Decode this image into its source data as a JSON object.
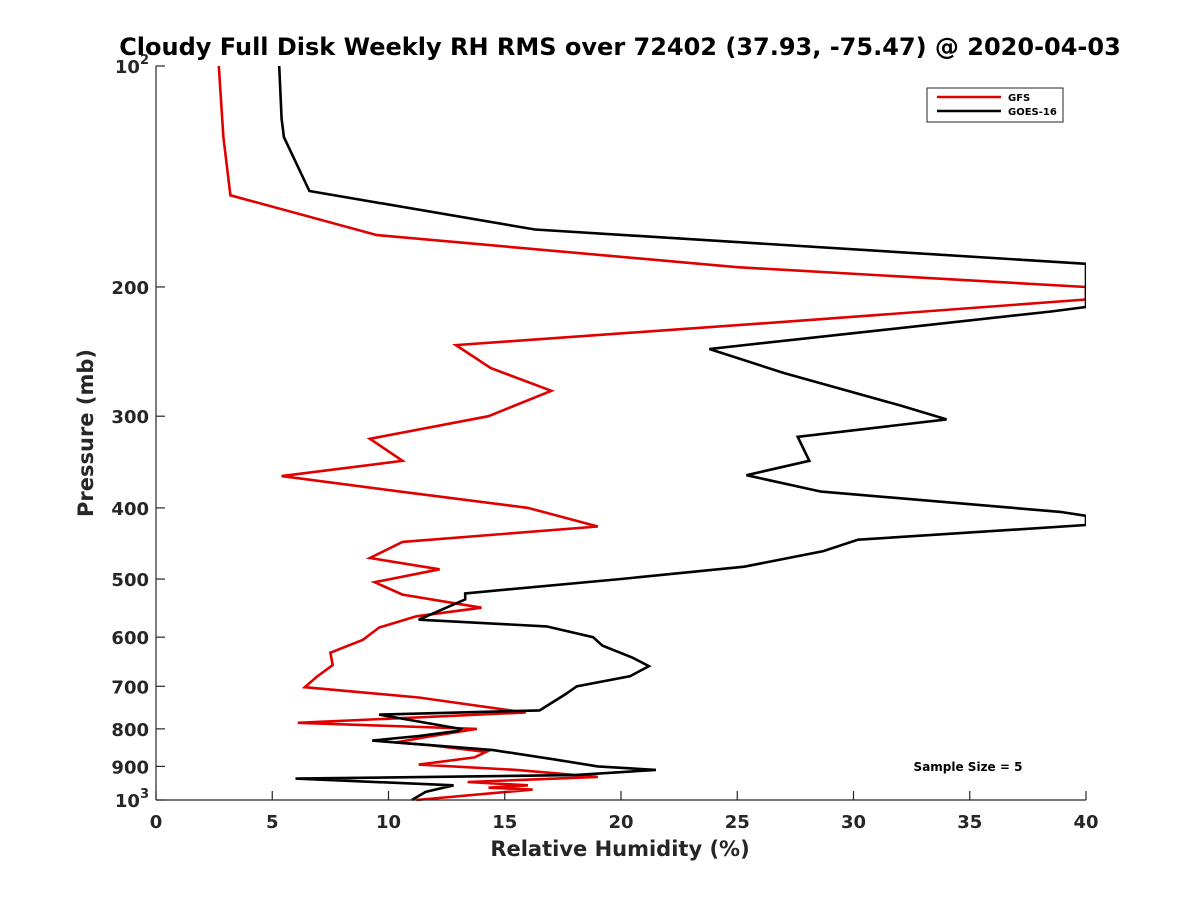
{
  "chart_data": {
    "type": "line",
    "title": "Cloudy Full Disk Weekly RH RMS over 72402 (37.93, -75.47) @ 2020-04-03",
    "xlabel": "Relative Humidity (%)",
    "ylabel": "Pressure (mb)",
    "xlim": [
      0,
      40
    ],
    "ylim": [
      100,
      1000
    ],
    "y_scale": "log",
    "y_reversed": true,
    "x_ticks": [
      "0",
      "5",
      "10",
      "15",
      "20",
      "25",
      "30",
      "35",
      "40"
    ],
    "y_ticks": [
      {
        "value": 100,
        "base": "10",
        "exp": "2"
      },
      {
        "value": 200,
        "label": "200"
      },
      {
        "value": 300,
        "label": "300"
      },
      {
        "value": 400,
        "label": "400"
      },
      {
        "value": 500,
        "label": "500"
      },
      {
        "value": 600,
        "label": "600"
      },
      {
        "value": 700,
        "label": "700"
      },
      {
        "value": 800,
        "label": "800"
      },
      {
        "value": 900,
        "label": "900"
      },
      {
        "value": 1000,
        "base": "10",
        "exp": "3"
      }
    ],
    "legend_position": "top-right",
    "annotation": "Sample Size = 5",
    "series": [
      {
        "name": "GFS",
        "color": "#e00000",
        "points": [
          [
            2.7,
            100
          ],
          [
            2.9,
            125
          ],
          [
            3.2,
            150
          ],
          [
            9.5,
            170
          ],
          [
            25,
            188
          ],
          [
            40,
            200
          ],
          [
            40,
            208
          ],
          [
            28,
            222
          ],
          [
            12.9,
            240
          ],
          [
            14.4,
            258
          ],
          [
            17,
            277
          ],
          [
            14.3,
            300
          ],
          [
            9.2,
            322
          ],
          [
            10.6,
            345
          ],
          [
            5.4,
            362
          ],
          [
            10.5,
            380
          ],
          [
            16,
            400
          ],
          [
            19,
            424
          ],
          [
            10.6,
            445
          ],
          [
            9.2,
            468
          ],
          [
            12.2,
            485
          ],
          [
            9.4,
            505
          ],
          [
            10.6,
            525
          ],
          [
            14,
            547
          ],
          [
            11.2,
            562
          ],
          [
            9.6,
            582
          ],
          [
            8.9,
            605
          ],
          [
            7.5,
            630
          ],
          [
            7.6,
            655
          ],
          [
            6.9,
            680
          ],
          [
            6.4,
            702
          ],
          [
            11.3,
            725
          ],
          [
            15.9,
            760
          ],
          [
            6.1,
            785
          ],
          [
            13.8,
            800
          ],
          [
            11.7,
            820
          ],
          [
            10.3,
            835
          ],
          [
            11.8,
            842
          ],
          [
            14.2,
            860
          ],
          [
            13.7,
            875
          ],
          [
            11.3,
            895
          ],
          [
            15.5,
            910
          ],
          [
            19,
            930
          ],
          [
            13.4,
            945
          ],
          [
            16,
            955
          ],
          [
            14.3,
            962
          ],
          [
            16.2,
            968
          ],
          [
            11.2,
            1000
          ]
        ]
      },
      {
        "name": "GOES-16",
        "color": "#000000",
        "points": [
          [
            5.3,
            100
          ],
          [
            5.4,
            118
          ],
          [
            5.5,
            125
          ],
          [
            6.6,
            148
          ],
          [
            16.3,
            167
          ],
          [
            40,
            186
          ],
          [
            40,
            213
          ],
          [
            38.5,
            216
          ],
          [
            23.8,
            243
          ],
          [
            27,
            262
          ],
          [
            32,
            290
          ],
          [
            34,
            303
          ],
          [
            27.6,
            320
          ],
          [
            28.1,
            345
          ],
          [
            25.4,
            361
          ],
          [
            28.6,
            380
          ],
          [
            38.9,
            405
          ],
          [
            40,
            410
          ],
          [
            40,
            422
          ],
          [
            30.2,
            442
          ],
          [
            28.7,
            458
          ],
          [
            25.3,
            481
          ],
          [
            20,
            500
          ],
          [
            13.3,
            523
          ],
          [
            13.3,
            533
          ],
          [
            11.3,
            568
          ],
          [
            16.8,
            580
          ],
          [
            18.8,
            600
          ],
          [
            19.2,
            616
          ],
          [
            20.5,
            640
          ],
          [
            21.2,
            657
          ],
          [
            20.4,
            678
          ],
          [
            18.1,
            700
          ],
          [
            17.6,
            718
          ],
          [
            16.5,
            755
          ],
          [
            9.6,
            765
          ],
          [
            13.1,
            800
          ],
          [
            13,
            805
          ],
          [
            11.3,
            818
          ],
          [
            9.3,
            830
          ],
          [
            14.5,
            855
          ],
          [
            17.1,
            880
          ],
          [
            19,
            900
          ],
          [
            21.5,
            910
          ],
          [
            18,
            925
          ],
          [
            6,
            935
          ],
          [
            12.8,
            955
          ],
          [
            11.6,
            975
          ],
          [
            11,
            1000
          ]
        ]
      }
    ]
  }
}
